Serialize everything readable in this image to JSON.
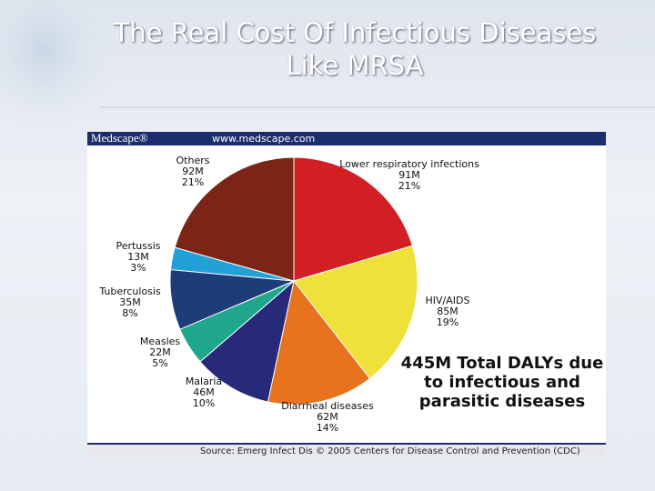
{
  "chart_data": {
    "type": "pie",
    "title": "The Real Cost Of Infectious Diseases Like MRSA",
    "banner": {
      "brand": "Medscape®",
      "url": "www.medscape.com"
    },
    "categories": [
      "Lower respiratory infections",
      "HIV/AIDS",
      "Diarrheal diseases",
      "Malaria",
      "Measles",
      "Tuberculosis",
      "Pertussis",
      "Others"
    ],
    "values": [
      91,
      85,
      62,
      46,
      22,
      35,
      13,
      92
    ],
    "value_labels": [
      "91M",
      "85M",
      "62M",
      "46M",
      "22M",
      "35M",
      "13M",
      "92M"
    ],
    "shares": [
      21,
      19,
      14,
      10,
      5,
      8,
      3,
      21
    ],
    "share_labels": [
      "21%",
      "19%",
      "14%",
      "10%",
      "5%",
      "8%",
      "3%",
      "21%"
    ],
    "colors": [
      "#d21f24",
      "#eee23a",
      "#e8731f",
      "#272a78",
      "#1fa68c",
      "#1d3c78",
      "#22a1d6",
      "#7b2517"
    ],
    "annotation": [
      "445M Total DALYs due",
      "to infectious and",
      "parasitic diseases"
    ],
    "source": "Source: Emerg Infect Dis © 2005 Centers for Disease Control and Prevention (CDC)"
  }
}
